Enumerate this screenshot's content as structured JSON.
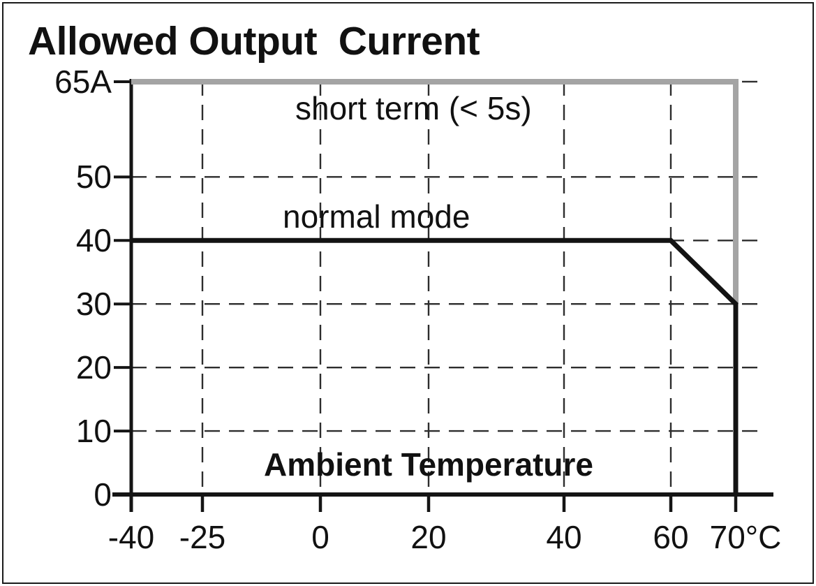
{
  "chart_data": {
    "type": "line",
    "title": "Allowed Output  Current",
    "xlabel": "Ambient Temperature",
    "x_unit": "°C",
    "y_unit": "A",
    "xlim": [
      -40,
      75
    ],
    "ylim": [
      0,
      65
    ],
    "grid": "dashed",
    "grid_color": "#2d2d2d",
    "axis_color": "#141414",
    "x_ticks": [
      -40,
      -25,
      0,
      20,
      40,
      60,
      70
    ],
    "x_tick_labels": [
      "-40",
      "-25",
      "0",
      "20",
      "40",
      "60",
      "70°C"
    ],
    "y_ticks": [
      65,
      50,
      40,
      30,
      20,
      10,
      0
    ],
    "y_tick_labels": [
      "65A",
      "50",
      "40",
      "30",
      "20",
      "10",
      "0"
    ],
    "grid_x": [
      -25,
      0,
      20,
      40,
      60,
      70
    ],
    "grid_y": [
      65,
      50,
      40,
      30,
      20,
      10
    ],
    "legend_position": "inline-annotations",
    "series": [
      {
        "name": "short term (< 5s)",
        "color": "#a4a4a4",
        "points": [
          [
            -40,
            65
          ],
          [
            70,
            65
          ],
          [
            70,
            30
          ]
        ]
      },
      {
        "name": "normal mode",
        "color": "#131313",
        "points": [
          [
            -40,
            40
          ],
          [
            60,
            40
          ],
          [
            70,
            30
          ],
          [
            70,
            0
          ]
        ]
      }
    ]
  }
}
